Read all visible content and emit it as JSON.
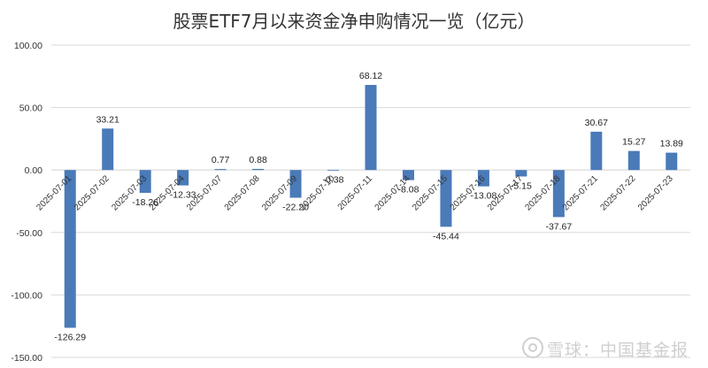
{
  "chart_data": {
    "type": "bar",
    "title": "股票ETF7月以来资金净申购情况一览（亿元）",
    "categories": [
      "2025-07-01",
      "2025-07-02",
      "2025-07-03",
      "2025-07-04",
      "2025-07-07",
      "2025-07-08",
      "2025-07-09",
      "2025-07-10",
      "2025-07-11",
      "2025-07-14",
      "2025-07-15",
      "2025-07-16",
      "2025-07-17",
      "2025-07-18",
      "2025-07-21",
      "2025-07-22",
      "2025-07-23"
    ],
    "values": [
      -126.29,
      33.21,
      -18.26,
      -12.33,
      0.77,
      0.88,
      -22.2,
      -0.38,
      68.12,
      -8.08,
      -45.44,
      -13.08,
      -5.15,
      -37.67,
      30.67,
      15.27,
      13.89
    ],
    "value_labels": [
      "-126.29",
      "33.21",
      "-18.26",
      "-12.33",
      "0.77",
      "0.88",
      "-22.20",
      "-0.38",
      "68.12",
      "-8.08",
      "-45.44",
      "-13.08",
      "-5.15",
      "-37.67",
      "30.67",
      "15.27",
      "13.89"
    ],
    "yticks": [
      "100.00",
      "50.00",
      "0.00",
      "-50.00",
      "-100.00",
      "-150.00"
    ],
    "ytick_values": [
      100,
      50,
      0,
      -50,
      -100,
      -150
    ],
    "ylim": [
      -150,
      100
    ],
    "grid": true,
    "legend": "none",
    "bar_color": "#4a7ab8",
    "grid_color": "#d9d9d9",
    "xlabel": "",
    "ylabel": ""
  },
  "watermark": "雪球：中国基金报"
}
